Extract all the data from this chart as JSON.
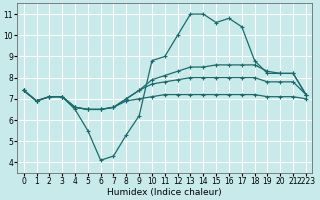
{
  "title": "",
  "xlabel": "Humidex (Indice chaleur)",
  "background_color": "#c8eaea",
  "grid_color": "#ffffff",
  "line_color": "#1a6b6b",
  "x_values": [
    0,
    1,
    2,
    3,
    4,
    5,
    6,
    7,
    8,
    9,
    10,
    11,
    12,
    13,
    14,
    15,
    16,
    17,
    18,
    19,
    20,
    21,
    22
  ],
  "series1": [
    7.4,
    6.9,
    7.1,
    7.1,
    6.5,
    5.5,
    4.1,
    4.3,
    5.3,
    6.2,
    8.8,
    9.0,
    10.0,
    11.0,
    11.0,
    10.6,
    10.8,
    10.4,
    8.8,
    8.2,
    8.2,
    8.2,
    7.2
  ],
  "series2": [
    7.4,
    6.9,
    7.1,
    7.1,
    6.6,
    6.5,
    6.5,
    6.6,
    7.0,
    7.4,
    7.9,
    8.1,
    8.3,
    8.5,
    8.5,
    8.6,
    8.6,
    8.6,
    8.6,
    8.3,
    8.2,
    8.2,
    7.2
  ],
  "series3": [
    7.4,
    6.9,
    7.1,
    7.1,
    6.6,
    6.5,
    6.5,
    6.6,
    7.0,
    7.4,
    7.7,
    7.8,
    7.9,
    8.0,
    8.0,
    8.0,
    8.0,
    8.0,
    8.0,
    7.8,
    7.8,
    7.8,
    7.2
  ],
  "series4": [
    7.4,
    6.9,
    7.1,
    7.1,
    6.6,
    6.5,
    6.5,
    6.6,
    6.9,
    7.0,
    7.1,
    7.2,
    7.2,
    7.2,
    7.2,
    7.2,
    7.2,
    7.2,
    7.2,
    7.1,
    7.1,
    7.1,
    7.0
  ],
  "ylim": [
    3.5,
    11.5
  ],
  "yticks": [
    4,
    5,
    6,
    7,
    8,
    9,
    10,
    11
  ],
  "xtick_positions": [
    0,
    1,
    2,
    3,
    4,
    5,
    6,
    7,
    8,
    9,
    10,
    11,
    12,
    13,
    14,
    15,
    16,
    17,
    18,
    19,
    20,
    21,
    22
  ],
  "xtick_labels": [
    "0",
    "1",
    "2",
    "3",
    "4",
    "5",
    "6",
    "7",
    "8",
    "9",
    "10",
    "11",
    "12",
    "13",
    "14",
    "15",
    "16",
    "17",
    "18",
    "19",
    "20",
    "21",
    "2223"
  ],
  "xlim": [
    -0.5,
    22.5
  ],
  "tick_fontsize": 5.5,
  "xlabel_fontsize": 6.5,
  "linewidth": 0.9,
  "markersize": 2.5
}
